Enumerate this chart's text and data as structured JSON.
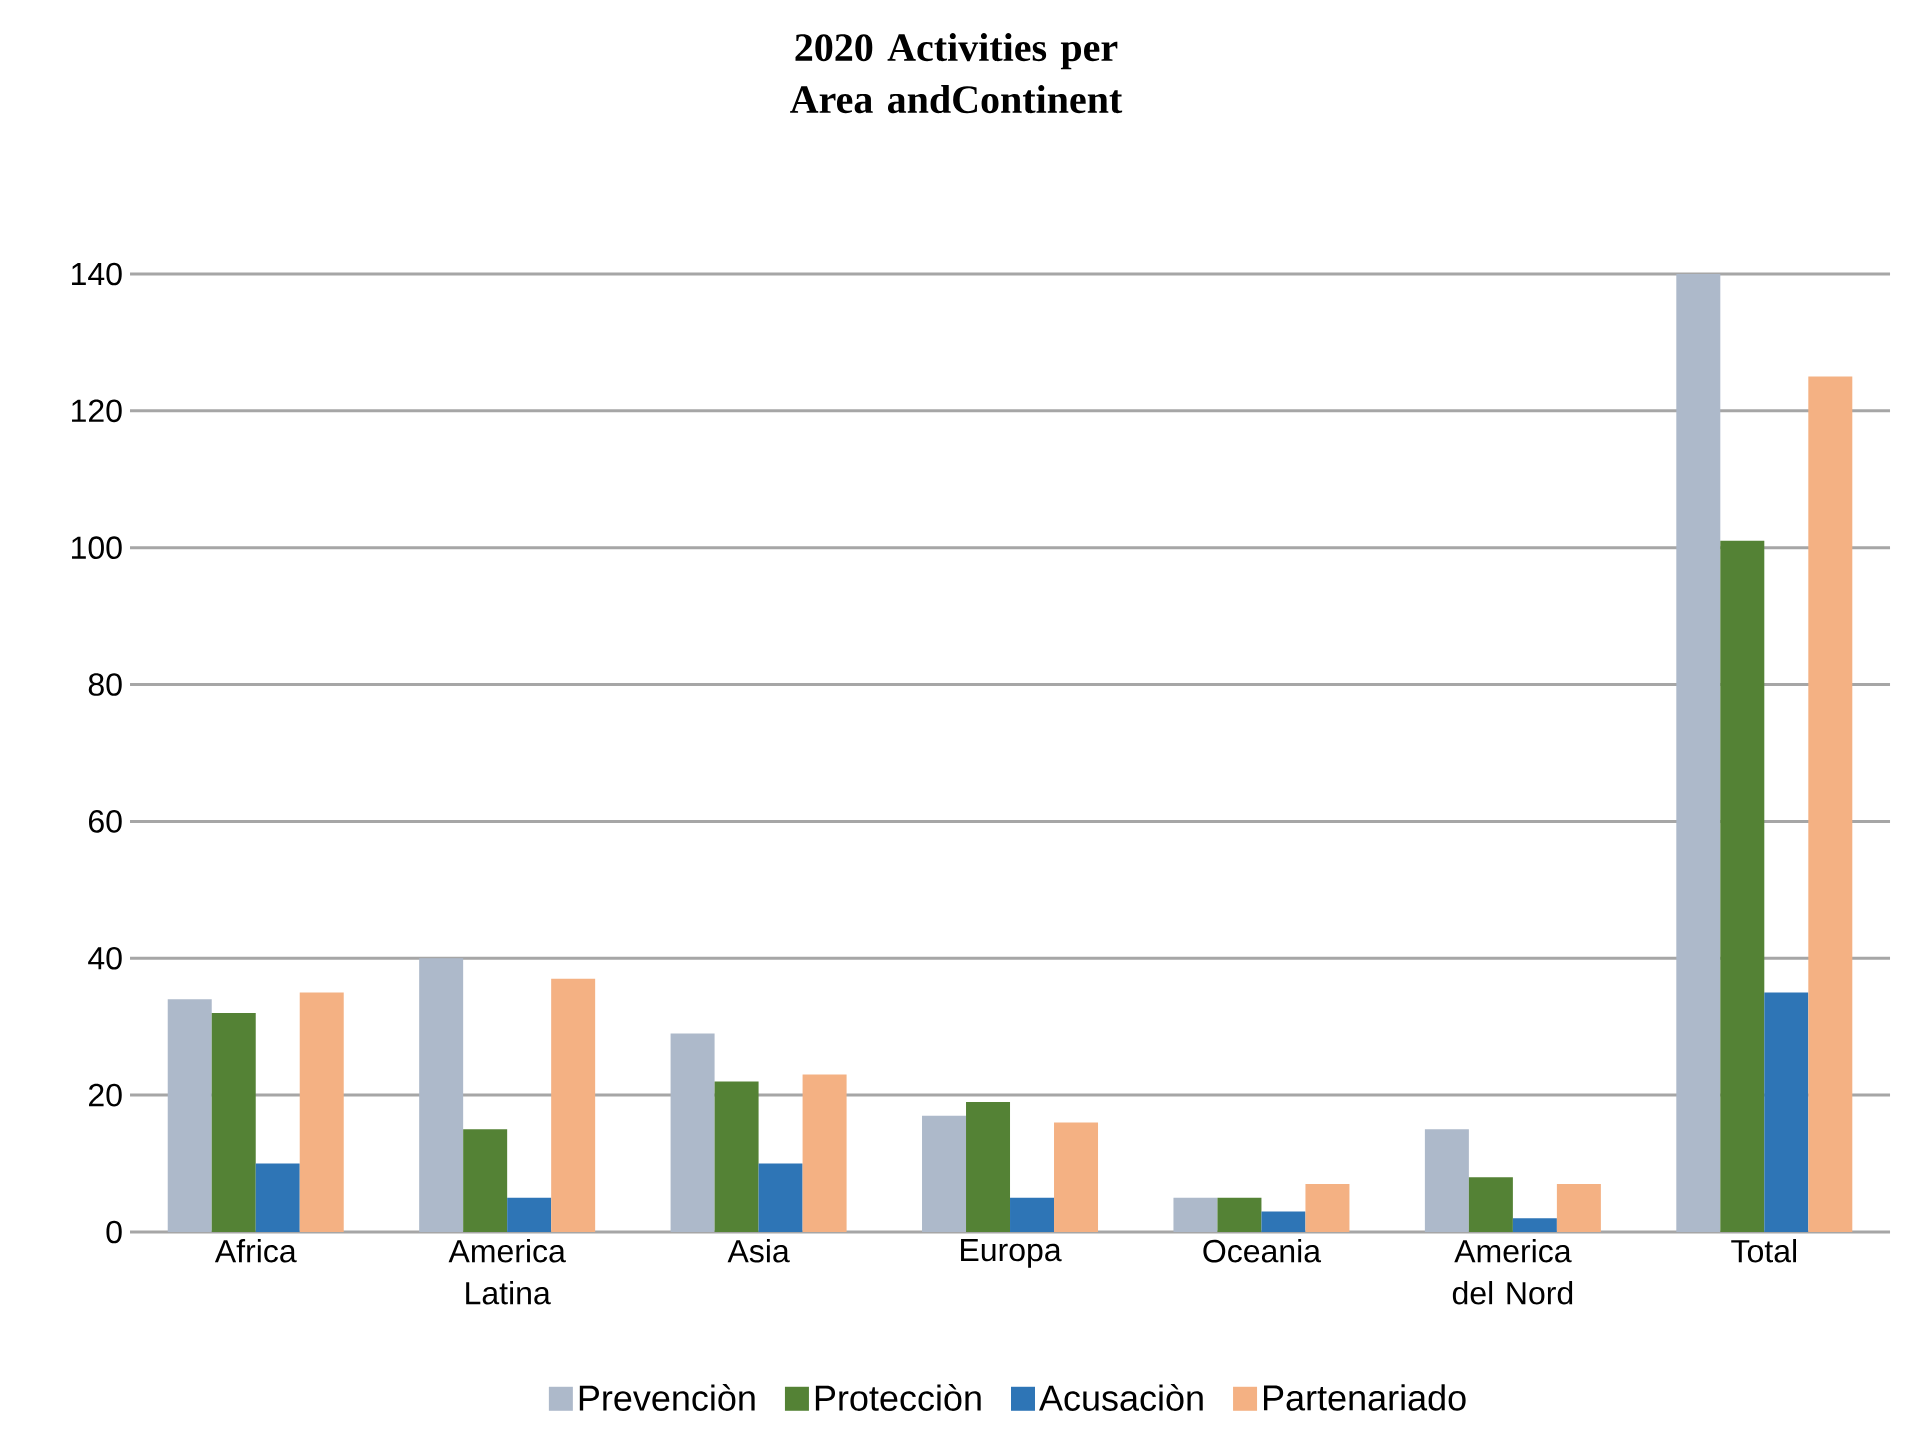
{
  "chart_data": {
    "type": "bar",
    "title": "2020 Activities per Area andContinent",
    "categories": [
      "Africa",
      "America Latina",
      "Asia",
      "Europa",
      "Oceania",
      "America del Nord",
      "Total"
    ],
    "series": [
      {
        "name": "Prevenciòn",
        "color": "#adb9ca",
        "values": [
          34,
          40,
          29,
          17,
          5,
          15,
          140
        ]
      },
      {
        "name": "Protecciòn",
        "color": "#548235",
        "values": [
          32,
          15,
          22,
          19,
          5,
          8,
          101
        ]
      },
      {
        "name": "Acusaciòn",
        "color": "#2e75b6",
        "values": [
          10,
          5,
          10,
          5,
          3,
          2,
          35
        ]
      },
      {
        "name": "Partenariado",
        "color": "#f4b183",
        "values": [
          35,
          37,
          23,
          16,
          7,
          7,
          125
        ]
      }
    ],
    "ylim": [
      0,
      140
    ],
    "yticks": [
      0,
      20,
      40,
      60,
      80,
      100,
      120,
      140
    ],
    "grid": "y",
    "legend": "bottom"
  }
}
